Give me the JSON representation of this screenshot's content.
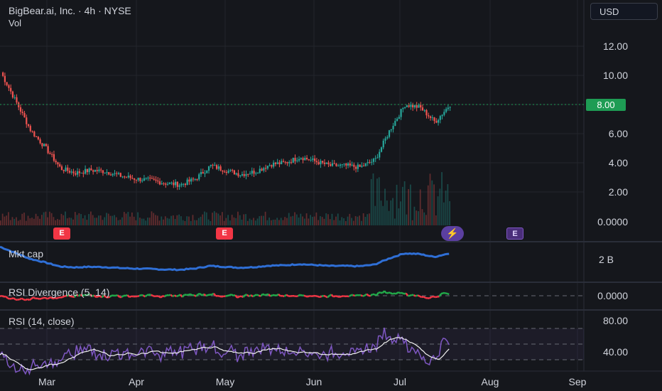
{
  "header": {
    "title": "BigBear.ai, Inc. · 4h · NYSE",
    "volume_label": "Vol",
    "currency": "USD"
  },
  "price_axis": {
    "ticks": [
      "12.00",
      "10.00",
      "6.00",
      "4.00",
      "2.00",
      "0.0000"
    ],
    "current_price": "8.00"
  },
  "panes": {
    "mkt_cap": {
      "label": "Mkt cap",
      "axis_value": "2 B"
    },
    "rsi_divergence": {
      "label": "RSI Divergence (5, 14)",
      "axis_value": "0.0000"
    },
    "rsi": {
      "label": "RSI (14, close)",
      "axis_values": [
        "80.00",
        "40.00"
      ]
    }
  },
  "time_axis": {
    "labels": [
      "Mar",
      "Apr",
      "May",
      "Jun",
      "Jul",
      "Aug",
      "Sep"
    ]
  },
  "events": [
    {
      "type": "earnings",
      "label": "E",
      "style": "red"
    },
    {
      "type": "earnings",
      "label": "E",
      "style": "red"
    },
    {
      "type": "split",
      "label": "⚡",
      "style": "purple"
    },
    {
      "type": "earnings",
      "label": "E",
      "style": "purple"
    }
  ],
  "colors": {
    "background": "#15171c",
    "up_candle": "#26a69a",
    "down_candle": "#ef5350",
    "price_line": "#1e9c54",
    "mkt_cap_line": "#2f6fd6",
    "rsi_line": "#7e57c2",
    "rsi_ma_line": "#f0f0f0",
    "div_positive": "#22ab4a",
    "div_negative": "#f23645"
  },
  "chart_data": {
    "type": "line",
    "price_series": {
      "x": [
        "Feb 20",
        "Feb 25",
        "Mar 1",
        "Mar 5",
        "Mar 10",
        "Mar 15",
        "Mar 20",
        "Mar 25",
        "Apr 1",
        "Apr 5",
        "Apr 10",
        "Apr 15",
        "Apr 20",
        "Apr 25",
        "May 1",
        "May 5",
        "May 10",
        "May 15",
        "May 20",
        "May 25",
        "Jun 1",
        "Jun 5",
        "Jun 10",
        "Jun 15",
        "Jun 20",
        "Jun 25",
        "Jul 1",
        "Jul 5",
        "Jul 10",
        "Jul 15",
        "Jul 20"
      ],
      "y": [
        10.2,
        8.2,
        6.2,
        5.0,
        3.6,
        3.3,
        3.5,
        3.4,
        3.1,
        2.9,
        2.8,
        2.6,
        2.5,
        2.9,
        3.8,
        3.5,
        3.2,
        3.4,
        3.9,
        4.0,
        4.4,
        4.1,
        3.8,
        3.8,
        3.7,
        4.2,
        6.3,
        8.0,
        7.8,
        6.8,
        8.0
      ]
    },
    "ylim": [
      0,
      13
    ],
    "rsi_ylim": [
      20,
      90
    ]
  }
}
